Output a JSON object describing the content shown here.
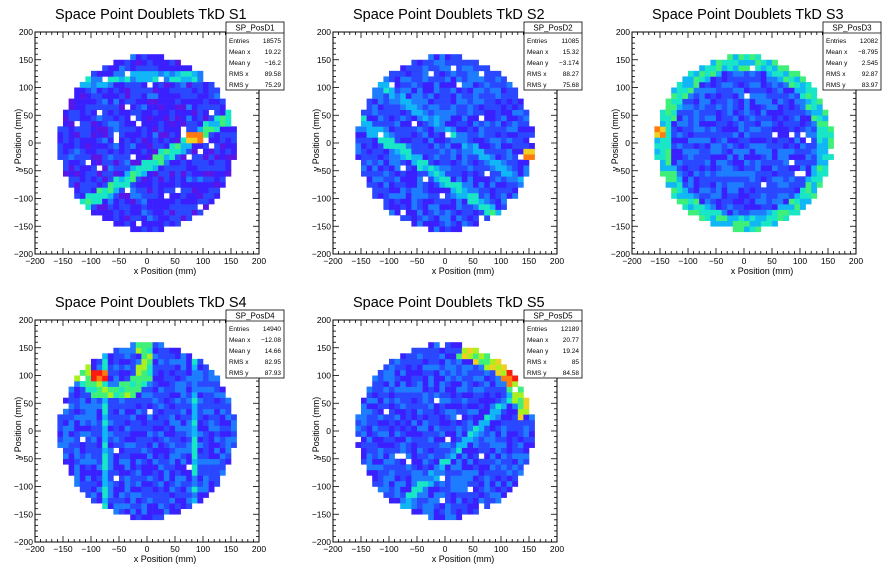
{
  "colors": {
    "palette": [
      "#5a16e6",
      "#3a20ff",
      "#2a48ff",
      "#1e7cff",
      "#10b6f5",
      "#18e6c6",
      "#3ef07a",
      "#a8f020",
      "#f0d020",
      "#ff7a10",
      "#ff1a10"
    ],
    "frame": "#000000",
    "background": "#ffffff"
  },
  "chart_data": [
    {
      "type": "heatmap",
      "title": "Space Point Doublets TkD S1",
      "xlabel": "x Position (mm)",
      "ylabel": "y Position (mm)",
      "xlim": [
        -200,
        200
      ],
      "ylim": [
        -200,
        200
      ],
      "xticks": [
        "−200",
        "−150",
        "−100",
        "−50",
        "0",
        "50",
        "100",
        "150",
        "200"
      ],
      "yticks": [
        "200",
        "150",
        "100",
        "50",
        "0",
        "−50",
        "−100",
        "−150",
        "−200"
      ],
      "grid": false,
      "fiducial_radius": 160,
      "bin_size": 10,
      "stats": {
        "name": "SP_PosD1",
        "rows": [
          {
            "label": "Entries",
            "value": "18575"
          },
          {
            "label": "Mean x",
            "value": "19.22"
          },
          {
            "label": "Mean y",
            "value": "−16.2"
          },
          {
            "label": "RMS x",
            "value": "89.58"
          },
          {
            "label": "RMS y",
            "value": "75.29"
          }
        ]
      },
      "features": {
        "base_level": 1.4,
        "bands": [
          {
            "dir": [
              0.7,
              0.43
            ],
            "offset": -36,
            "width": 11,
            "level": 5.5
          },
          {
            "dir": [
              1,
              0.05
            ],
            "offset": 118,
            "width": 10,
            "level": 4.5
          },
          {
            "dir": [
              0.4,
              -0.92
            ],
            "offset": -50,
            "width": 8,
            "level": 2.5
          }
        ],
        "hot": [
          {
            "x": 85,
            "y": 10,
            "level": 9
          }
        ],
        "empty": [
          [
            -35,
            125
          ],
          [
            -75,
            115
          ],
          [
            -85,
            55
          ],
          [
            -25,
            45
          ],
          [
            -55,
            15
          ],
          [
            -15,
            35
          ],
          [
            5,
            105
          ],
          [
            65,
            15
          ],
          [
            105,
            5
          ],
          [
            115,
            -5
          ]
        ]
      }
    },
    {
      "type": "heatmap",
      "title": "Space Point Doublets TkD S2",
      "xlabel": "x Position (mm)",
      "ylabel": "y Position (mm)",
      "xlim": [
        -200,
        200
      ],
      "ylim": [
        -200,
        200
      ],
      "xticks": [
        "−200",
        "−150",
        "−100",
        "−50",
        "0",
        "50",
        "100",
        "150",
        "200"
      ],
      "yticks": [
        "200",
        "150",
        "100",
        "50",
        "0",
        "−50",
        "−100",
        "−150",
        "−200"
      ],
      "grid": false,
      "fiducial_radius": 160,
      "bin_size": 10,
      "stats": {
        "name": "SP_PosD2",
        "rows": [
          {
            "label": "Entries",
            "value": "11085"
          },
          {
            "label": "Mean x",
            "value": "15.32"
          },
          {
            "label": "Mean y",
            "value": "−3.174"
          },
          {
            "label": "RMS x",
            "value": "88.27"
          },
          {
            "label": "RMS y",
            "value": "75.68"
          }
        ]
      },
      "features": {
        "base_level": 2.0,
        "bands": [
          {
            "dir": [
              0.82,
              -0.57
            ],
            "offset": -55,
            "width": 10,
            "level": 5.0
          },
          {
            "dir": [
              0.82,
              -0.57
            ],
            "offset": 20,
            "width": 9,
            "level": 4.0
          }
        ],
        "hot": [
          {
            "x": 155,
            "y": -20,
            "level": 9
          }
        ],
        "empty": [
          [
            -25,
            125
          ],
          [
            15,
            135
          ],
          [
            -95,
            105
          ],
          [
            25,
            105
          ],
          [
            -55,
            35
          ],
          [
            65,
            45
          ],
          [
            -75,
            -45
          ],
          [
            -35,
            -65
          ],
          [
            -115,
            -105
          ],
          [
            -5,
            -95
          ],
          [
            65,
            -135
          ],
          [
            75,
            -55
          ]
        ]
      }
    },
    {
      "type": "heatmap",
      "title": "Space Point Doublets TkD S3",
      "xlabel": "x Position (mm)",
      "ylabel": "y Position (mm)",
      "xlim": [
        -200,
        200
      ],
      "ylim": [
        -200,
        200
      ],
      "xticks": [
        "−200",
        "−150",
        "−100",
        "−50",
        "0",
        "50",
        "100",
        "150",
        "200"
      ],
      "yticks": [
        "200",
        "150",
        "100",
        "50",
        "0",
        "−50",
        "−100",
        "−150",
        "−200"
      ],
      "grid": false,
      "fiducial_radius": 160,
      "bin_size": 10,
      "stats": {
        "name": "SP_PosD3",
        "rows": [
          {
            "label": "Entries",
            "value": "12082"
          },
          {
            "label": "Mean x",
            "value": "−8.795"
          },
          {
            "label": "Mean y",
            "value": "2.545"
          },
          {
            "label": "RMS x",
            "value": "92.87"
          },
          {
            "label": "RMS y",
            "value": "83.97"
          }
        ]
      },
      "features": {
        "base_level": 2.1,
        "bands": [],
        "rim_level": 5.0,
        "hot": [
          {
            "x": -150,
            "y": 20,
            "level": 9
          }
        ],
        "empty": [
          [
            55,
            15
          ],
          [
            85,
            15
          ],
          [
            115,
            5
          ],
          [
            35,
            -75
          ],
          [
            95,
            -55
          ]
        ]
      }
    },
    {
      "type": "heatmap",
      "title": "Space Point Doublets TkD S4",
      "xlabel": "x Position (mm)",
      "ylabel": "y Position (mm)",
      "xlim": [
        -200,
        200
      ],
      "ylim": [
        -200,
        200
      ],
      "xticks": [
        "−200",
        "−150",
        "−100",
        "−50",
        "0",
        "50",
        "100",
        "150",
        "200"
      ],
      "yticks": [
        "200",
        "150",
        "100",
        "50",
        "0",
        "−50",
        "−100",
        "−150",
        "−200"
      ],
      "grid": false,
      "fiducial_radius": 160,
      "bin_size": 10,
      "stats": {
        "name": "SP_PosD4",
        "rows": [
          {
            "label": "Entries",
            "value": "14940"
          },
          {
            "label": "Mean x",
            "value": "−12.08"
          },
          {
            "label": "Mean y",
            "value": "14.66"
          },
          {
            "label": "RMS x",
            "value": "82.95"
          },
          {
            "label": "RMS y",
            "value": "87.93"
          }
        ]
      },
      "features": {
        "base_level": 2.0,
        "bands": [
          {
            "dir": [
              0,
              1
            ],
            "offset": -82,
            "width": 7,
            "level": 4.5
          },
          {
            "dir": [
              0,
              1
            ],
            "offset": 75,
            "width": 7,
            "level": 4.5
          }
        ],
        "arc": {
          "center": [
            -60,
            130
          ],
          "radius": 60,
          "level": 6.0
        },
        "hot": [
          {
            "x": -85,
            "y": 100,
            "level": 10
          }
        ],
        "empty": []
      }
    },
    {
      "type": "heatmap",
      "title": "Space Point Doublets TkD S5",
      "xlabel": "x Position (mm)",
      "ylabel": "y Position (mm)",
      "xlim": [
        -200,
        200
      ],
      "ylim": [
        -200,
        200
      ],
      "xticks": [
        "−200",
        "−150",
        "−100",
        "−50",
        "0",
        "50",
        "100",
        "150",
        "200"
      ],
      "yticks": [
        "200",
        "150",
        "100",
        "50",
        "0",
        "−50",
        "−100",
        "−150",
        "−200"
      ],
      "grid": false,
      "fiducial_radius": 160,
      "bin_size": 10,
      "stats": {
        "name": "SP_PosD5",
        "rows": [
          {
            "label": "Entries",
            "value": "12189"
          },
          {
            "label": "Mean x",
            "value": "20.77"
          },
          {
            "label": "Mean y",
            "value": "19.24"
          },
          {
            "label": "RMS x",
            "value": "85"
          },
          {
            "label": "RMS y",
            "value": "84.58"
          }
        ]
      },
      "features": {
        "base_level": 2.0,
        "bands": [
          {
            "dir": [
              0.7,
              0.71
            ],
            "offset": -40,
            "width": 9,
            "level": 4.5
          }
        ],
        "arc": {
          "center": [
            0,
            0
          ],
          "radius": 150,
          "from_deg": 10,
          "to_deg": 80,
          "level": 7.0
        },
        "hot": [
          {
            "x": 115,
            "y": 95,
            "level": 10
          },
          {
            "x": 150,
            "y": 55,
            "level": 9
          }
        ],
        "empty": [
          [
            -15,
            55
          ],
          [
            25,
            25
          ],
          [
            5,
            -15
          ],
          [
            -85,
            -45
          ],
          [
            -5,
            -85
          ],
          [
            45,
            -105
          ]
        ]
      }
    }
  ]
}
